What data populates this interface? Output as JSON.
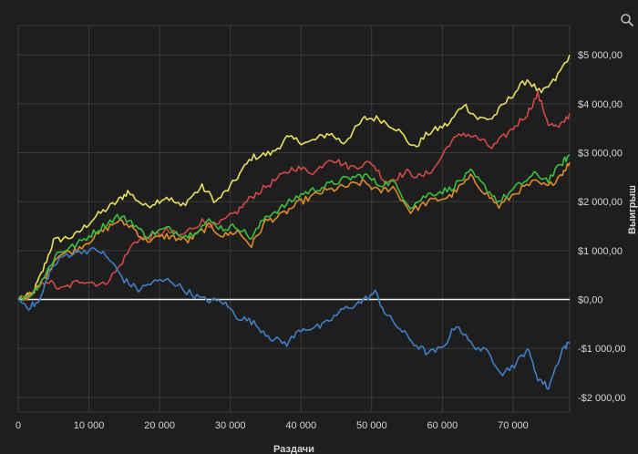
{
  "chart_data": {
    "type": "line",
    "title": "",
    "xlabel": "Раздачи",
    "ylabel": "Выигрыш",
    "xlim": [
      0,
      78000
    ],
    "ylim": [
      -2300,
      5600
    ],
    "grid": true,
    "y_axis_side": "right",
    "x_ticks": [
      0,
      10000,
      20000,
      30000,
      40000,
      50000,
      60000,
      70000
    ],
    "x_tick_labels": [
      "0",
      "10 000",
      "20 000",
      "30 000",
      "40 000",
      "50 000",
      "60 000",
      "70 000"
    ],
    "y_ticks": [
      5000,
      4000,
      3000,
      2000,
      1000,
      0,
      -1000,
      -2000
    ],
    "y_tick_labels": [
      "$5 000,00",
      "$4 000,00",
      "$3 000,00",
      "$2 000,00",
      "$1 000,00",
      "$0,00",
      "-$1 000,00",
      "-$2 000,00"
    ],
    "series": [
      {
        "color": "#e8e060",
        "x": [
          0,
          2000,
          3500,
          5000,
          8000,
          11000,
          14000,
          15500,
          18000,
          21000,
          23000,
          26000,
          28000,
          30000,
          33000,
          36000,
          38000,
          41000,
          44000,
          46000,
          49000,
          51000,
          53500,
          56000,
          58000,
          61000,
          63000,
          65000,
          67000,
          70000,
          72000,
          74000,
          76000,
          78000
        ],
        "y": [
          0,
          100,
          600,
          1200,
          1300,
          1700,
          2000,
          2200,
          1900,
          2100,
          1900,
          2300,
          2000,
          2300,
          2900,
          3000,
          3300,
          3200,
          3400,
          3200,
          3700,
          3700,
          3500,
          3100,
          3400,
          3600,
          4000,
          3700,
          3700,
          4200,
          4500,
          4200,
          4500,
          5000
        ]
      },
      {
        "color": "#d04848",
        "x": [
          0,
          2000,
          4000,
          6000,
          9000,
          12000,
          14000,
          16500,
          19000,
          21000,
          23000,
          26000,
          28000,
          31000,
          33000,
          36000,
          39000,
          42000,
          44000,
          47000,
          50000,
          52000,
          55000,
          57000,
          59000,
          61000,
          63000,
          65000,
          67000,
          70000,
          72000,
          73500,
          75000,
          76500,
          78000
        ],
        "y": [
          0,
          100,
          400,
          200,
          400,
          300,
          600,
          1200,
          1300,
          1400,
          1300,
          1600,
          1500,
          1800,
          2100,
          2400,
          2700,
          2600,
          2900,
          2700,
          2800,
          2400,
          2600,
          2500,
          2700,
          3200,
          3400,
          3300,
          3100,
          3500,
          3800,
          4200,
          3600,
          3500,
          3800
        ]
      },
      {
        "color": "#e08a2e",
        "x": [
          0,
          2000,
          4000,
          5500,
          8000,
          11000,
          14000,
          16000,
          18000,
          21000,
          24000,
          27000,
          29000,
          31000,
          33000,
          35000,
          37000,
          40000,
          43000,
          46000,
          49000,
          51000,
          53000,
          55500,
          58000,
          61000,
          64000,
          66000,
          68000,
          70500,
          73000,
          75000,
          77000,
          78000
        ],
        "y": [
          0,
          100,
          500,
          900,
          1000,
          1300,
          1600,
          1500,
          1200,
          1300,
          1200,
          1500,
          1300,
          1400,
          1100,
          1600,
          1700,
          2000,
          2200,
          2300,
          2400,
          2200,
          2300,
          1800,
          2000,
          2100,
          2500,
          2200,
          1900,
          2200,
          2400,
          2300,
          2600,
          2800
        ]
      },
      {
        "color": "#3cc03c",
        "x": [
          0,
          2000,
          4000,
          5500,
          8000,
          11000,
          14000,
          16000,
          18000,
          21000,
          24000,
          27000,
          29000,
          31000,
          33000,
          35000,
          37000,
          40000,
          43000,
          46000,
          49000,
          51000,
          53000,
          55500,
          58000,
          61000,
          64000,
          66000,
          68000,
          70500,
          73000,
          75000,
          77000,
          78000
        ],
        "y": [
          0,
          120,
          550,
          950,
          1100,
          1400,
          1700,
          1600,
          1300,
          1450,
          1300,
          1600,
          1450,
          1500,
          1250,
          1700,
          1850,
          2150,
          2300,
          2450,
          2550,
          2350,
          2400,
          1900,
          2150,
          2250,
          2600,
          2300,
          2000,
          2300,
          2550,
          2450,
          2800,
          2950
        ]
      },
      {
        "color": "#3f7fc4",
        "x": [
          0,
          1500,
          3000,
          4500,
          6500,
          9000,
          11500,
          13000,
          15000,
          17000,
          19000,
          21500,
          23500,
          26000,
          29000,
          31000,
          33000,
          36000,
          38000,
          40000,
          43000,
          46000,
          48500,
          50500,
          52000,
          54000,
          56000,
          58000,
          60000,
          62000,
          64000,
          66500,
          68500,
          70500,
          72000,
          73500,
          75000,
          77000,
          78000
        ],
        "y": [
          0,
          -150,
          -50,
          600,
          900,
          1000,
          1000,
          800,
          400,
          200,
          350,
          400,
          200,
          0,
          -50,
          -350,
          -450,
          -800,
          -900,
          -600,
          -550,
          -200,
          -50,
          150,
          -300,
          -600,
          -900,
          -1100,
          -1000,
          -500,
          -900,
          -1100,
          -1500,
          -1300,
          -1000,
          -1600,
          -1800,
          -1000,
          -900
        ]
      }
    ]
  },
  "ui": {
    "zoom_icon": "magnifier-icon"
  }
}
